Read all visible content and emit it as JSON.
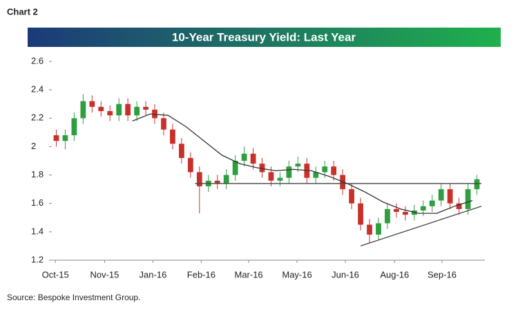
{
  "header": "Chart 2",
  "source": "Source: Bespoke Investment Group.",
  "chart_data": {
    "type": "candlestick",
    "title": "10-Year Treasury Yield: Last Year",
    "up_color": "#2e9e3e",
    "down_color": "#c8302a",
    "open": [
      2.08,
      2.04,
      2.08,
      2.2,
      2.32,
      2.28,
      2.25,
      2.22,
      2.3,
      2.22,
      2.28,
      2.26,
      2.2,
      2.12,
      2.02,
      1.92,
      1.82,
      1.72,
      1.76,
      1.74,
      1.8,
      1.9,
      1.95,
      1.88,
      1.82,
      1.76,
      1.78,
      1.86,
      1.88,
      1.78,
      1.82,
      1.86,
      1.8,
      1.7,
      1.6,
      1.45,
      1.38,
      1.46,
      1.56,
      1.54,
      1.52,
      1.55,
      1.58,
      1.62,
      1.7,
      1.6,
      1.56,
      1.7
    ],
    "high": [
      2.12,
      2.12,
      2.24,
      2.37,
      2.36,
      2.32,
      2.29,
      2.34,
      2.34,
      2.32,
      2.32,
      2.3,
      2.24,
      2.16,
      2.06,
      1.96,
      1.86,
      1.8,
      1.8,
      1.84,
      1.94,
      2.0,
      1.99,
      1.92,
      1.86,
      1.82,
      1.9,
      1.93,
      1.92,
      1.86,
      1.9,
      1.9,
      1.84,
      1.74,
      1.64,
      1.49,
      1.5,
      1.6,
      1.6,
      1.58,
      1.59,
      1.62,
      1.66,
      1.74,
      1.74,
      1.64,
      1.74,
      1.8
    ],
    "low": [
      2.0,
      1.98,
      2.04,
      2.16,
      2.24,
      2.21,
      2.18,
      2.18,
      2.18,
      2.18,
      2.22,
      2.16,
      2.08,
      1.98,
      1.88,
      1.78,
      1.53,
      1.68,
      1.7,
      1.7,
      1.76,
      1.86,
      1.84,
      1.78,
      1.72,
      1.72,
      1.74,
      1.82,
      1.74,
      1.74,
      1.78,
      1.76,
      1.66,
      1.56,
      1.41,
      1.32,
      1.34,
      1.42,
      1.5,
      1.48,
      1.48,
      1.51,
      1.54,
      1.58,
      1.56,
      1.52,
      1.52,
      1.66
    ],
    "close": [
      2.04,
      2.08,
      2.2,
      2.32,
      2.28,
      2.25,
      2.22,
      2.3,
      2.22,
      2.28,
      2.26,
      2.2,
      2.12,
      2.02,
      1.92,
      1.82,
      1.72,
      1.76,
      1.74,
      1.8,
      1.9,
      1.95,
      1.88,
      1.82,
      1.76,
      1.78,
      1.86,
      1.88,
      1.78,
      1.82,
      1.86,
      1.8,
      1.7,
      1.6,
      1.45,
      1.38,
      1.46,
      1.56,
      1.54,
      1.52,
      1.55,
      1.58,
      1.62,
      1.7,
      1.6,
      1.56,
      1.7,
      1.77
    ],
    "lines": [
      {
        "color": "#333333",
        "x": [
          9,
          11,
          13,
          15,
          17,
          19,
          21,
          23,
          25,
          27,
          29,
          31,
          33,
          35,
          37,
          39,
          41,
          43,
          45,
          47
        ],
        "values": [
          2.18,
          2.23,
          2.22,
          2.14,
          2.04,
          1.94,
          1.88,
          1.85,
          1.83,
          1.84,
          1.83,
          1.79,
          1.74,
          1.68,
          1.61,
          1.56,
          1.53,
          1.53,
          1.58,
          1.62
        ]
      },
      {
        "color": "#444444",
        "x": [
          16,
          48
        ],
        "values": [
          1.74,
          1.74
        ]
      },
      {
        "color": "#444444",
        "x": [
          34.5,
          48
        ],
        "values": [
          1.3,
          1.58
        ]
      }
    ],
    "xlim": [
      0,
      48
    ],
    "xticks": [
      {
        "value": 0.4,
        "label": "Oct-15"
      },
      {
        "value": 5.9,
        "label": "Nov-15"
      },
      {
        "value": 11.3,
        "label": "Jan-16"
      },
      {
        "value": 16.7,
        "label": "Feb-16"
      },
      {
        "value": 22,
        "label": "Mar-16"
      },
      {
        "value": 27.4,
        "label": "May-16"
      },
      {
        "value": 32.8,
        "label": "Jun-16"
      },
      {
        "value": 38.3,
        "label": "Aug-16"
      },
      {
        "value": 43.6,
        "label": "Sep-16"
      }
    ],
    "ylim": [
      1.2,
      2.6
    ],
    "yticks": [
      1.2,
      1.4,
      1.6,
      1.8,
      2.0,
      2.2,
      2.4,
      2.6
    ]
  }
}
